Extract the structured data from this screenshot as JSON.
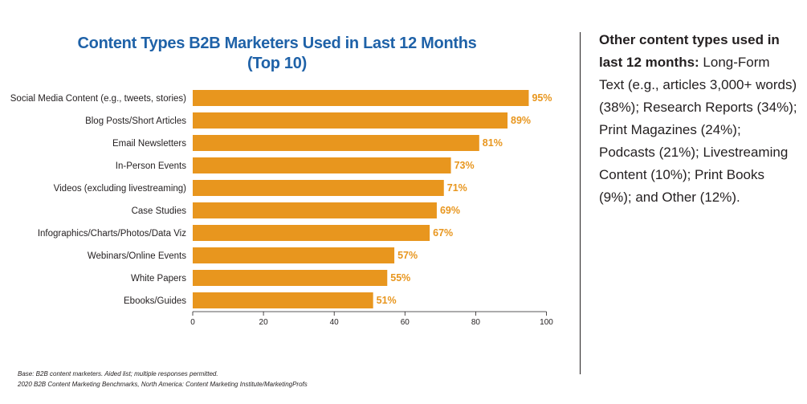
{
  "chart_data": {
    "type": "bar",
    "orientation": "horizontal",
    "title": "Content Types B2B Marketers Used in Last 12 Months",
    "subtitle": "(Top 10)",
    "categories": [
      "Social Media Content (e.g., tweets, stories)",
      "Blog Posts/Short Articles",
      "Email Newsletters",
      "In-Person Events",
      "Videos (excluding livestreaming)",
      "Case Studies",
      "Infographics/Charts/Photos/Data Viz",
      "Webinars/Online Events",
      "White Papers",
      "Ebooks/Guides"
    ],
    "values": [
      95,
      89,
      81,
      73,
      71,
      69,
      67,
      57,
      55,
      51
    ],
    "value_labels": [
      "95%",
      "89%",
      "81%",
      "73%",
      "71%",
      "69%",
      "67%",
      "57%",
      "55%",
      "51%"
    ],
    "xlim": [
      0,
      100
    ],
    "xticks": [
      0,
      20,
      40,
      60,
      80,
      100
    ],
    "bar_color": "#e8961e",
    "grid": false
  },
  "sidebar": {
    "heading": "Other content types used in last 12 months:",
    "body": " Long-Form Text (e.g., articles 3,000+ words) (38%); Research Reports (34%); Print Magazines (24%); Podcasts (21%); Livestreaming Content (10%); Print Books (9%); and Other (12%)."
  },
  "footnotes": {
    "base": "Base: B2B content marketers. Aided list; multiple responses permitted.",
    "source": "2020 B2B Content Marketing Benchmarks, North America: Content Marketing Institute/MarketingProfs"
  },
  "colors": {
    "title": "#1f62a8",
    "bar": "#e8961e",
    "text": "#231f20"
  }
}
